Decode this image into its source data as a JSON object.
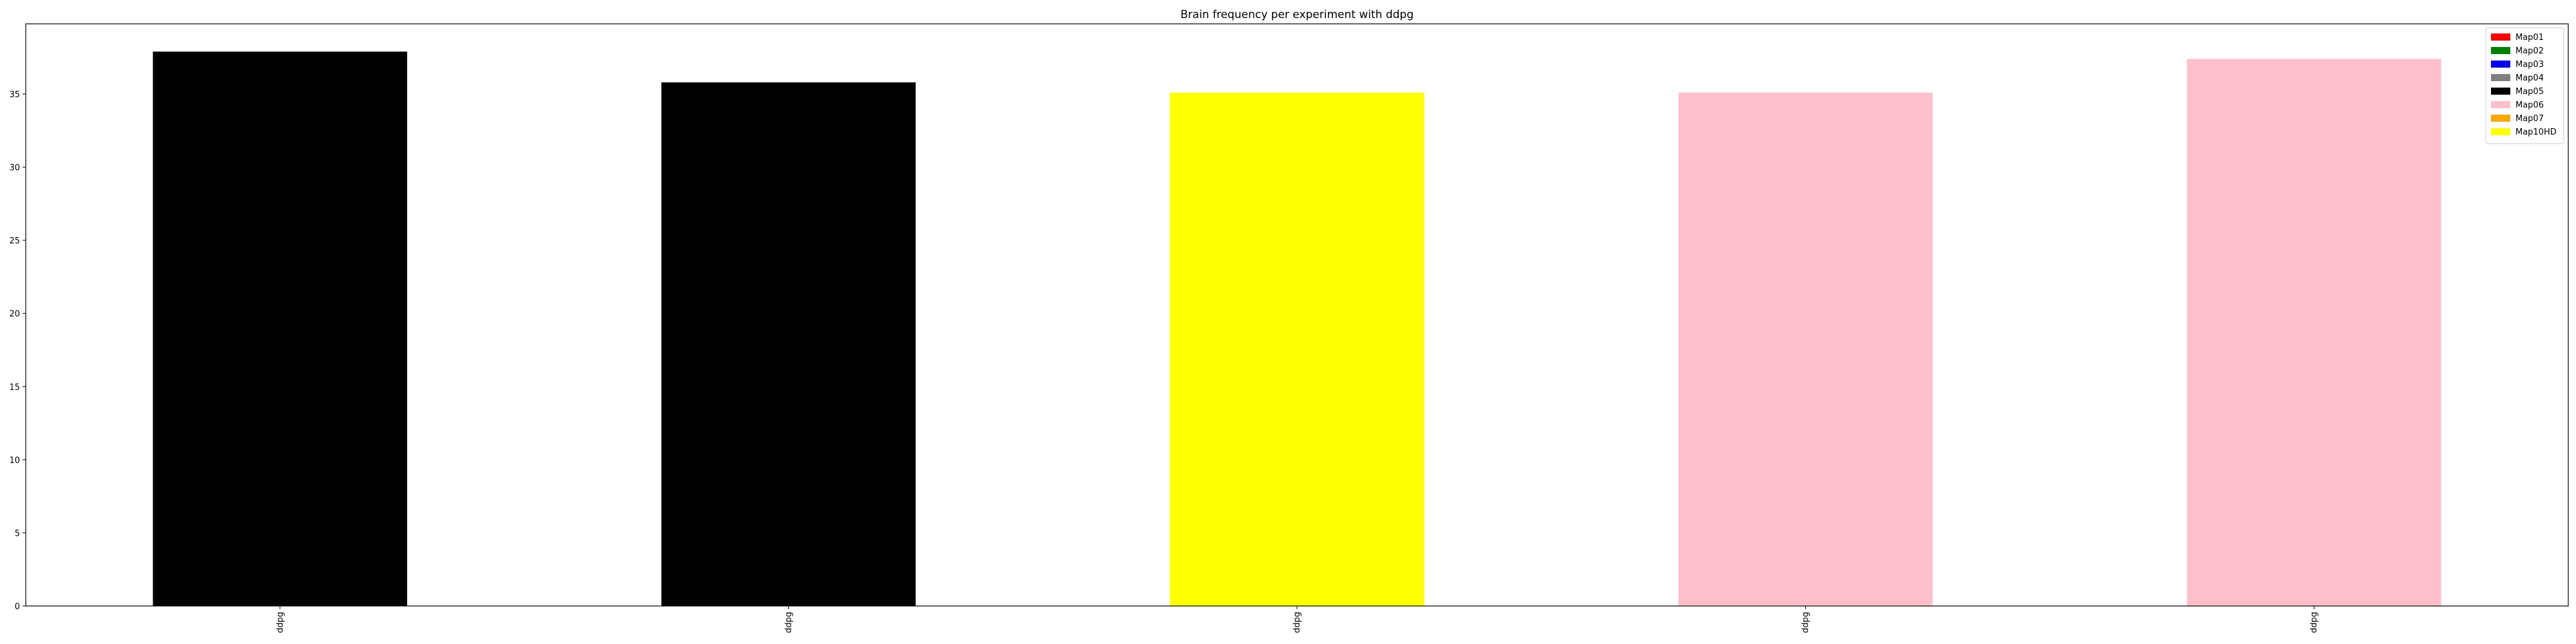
{
  "chart_data": {
    "type": "bar",
    "title": "Brain frequency per experiment with ddpg",
    "xlabel": "",
    "ylabel": "",
    "categories": [
      "ddpg",
      "ddpg",
      "ddpg",
      "ddpg",
      "ddpg"
    ],
    "values": [
      37.9,
      35.8,
      35.1,
      35.1,
      37.4
    ],
    "bar_series": [
      "Map05",
      "Map05",
      "Map10HD",
      "Map06",
      "Map06"
    ],
    "ylim": [
      0,
      39.8
    ],
    "yticks": [
      0,
      5,
      10,
      15,
      20,
      25,
      30,
      35
    ],
    "grid": false,
    "legend_position": "top-right",
    "legend": [
      {
        "label": "Map01",
        "color": "#ff0000"
      },
      {
        "label": "Map02",
        "color": "#008000"
      },
      {
        "label": "Map03",
        "color": "#0000ff"
      },
      {
        "label": "Map04",
        "color": "#808080"
      },
      {
        "label": "Map05",
        "color": "#000000"
      },
      {
        "label": "Map06",
        "color": "#ffc0cb"
      },
      {
        "label": "Map07",
        "color": "#ffa500"
      },
      {
        "label": "Map10HD",
        "color": "#ffff00"
      }
    ]
  }
}
